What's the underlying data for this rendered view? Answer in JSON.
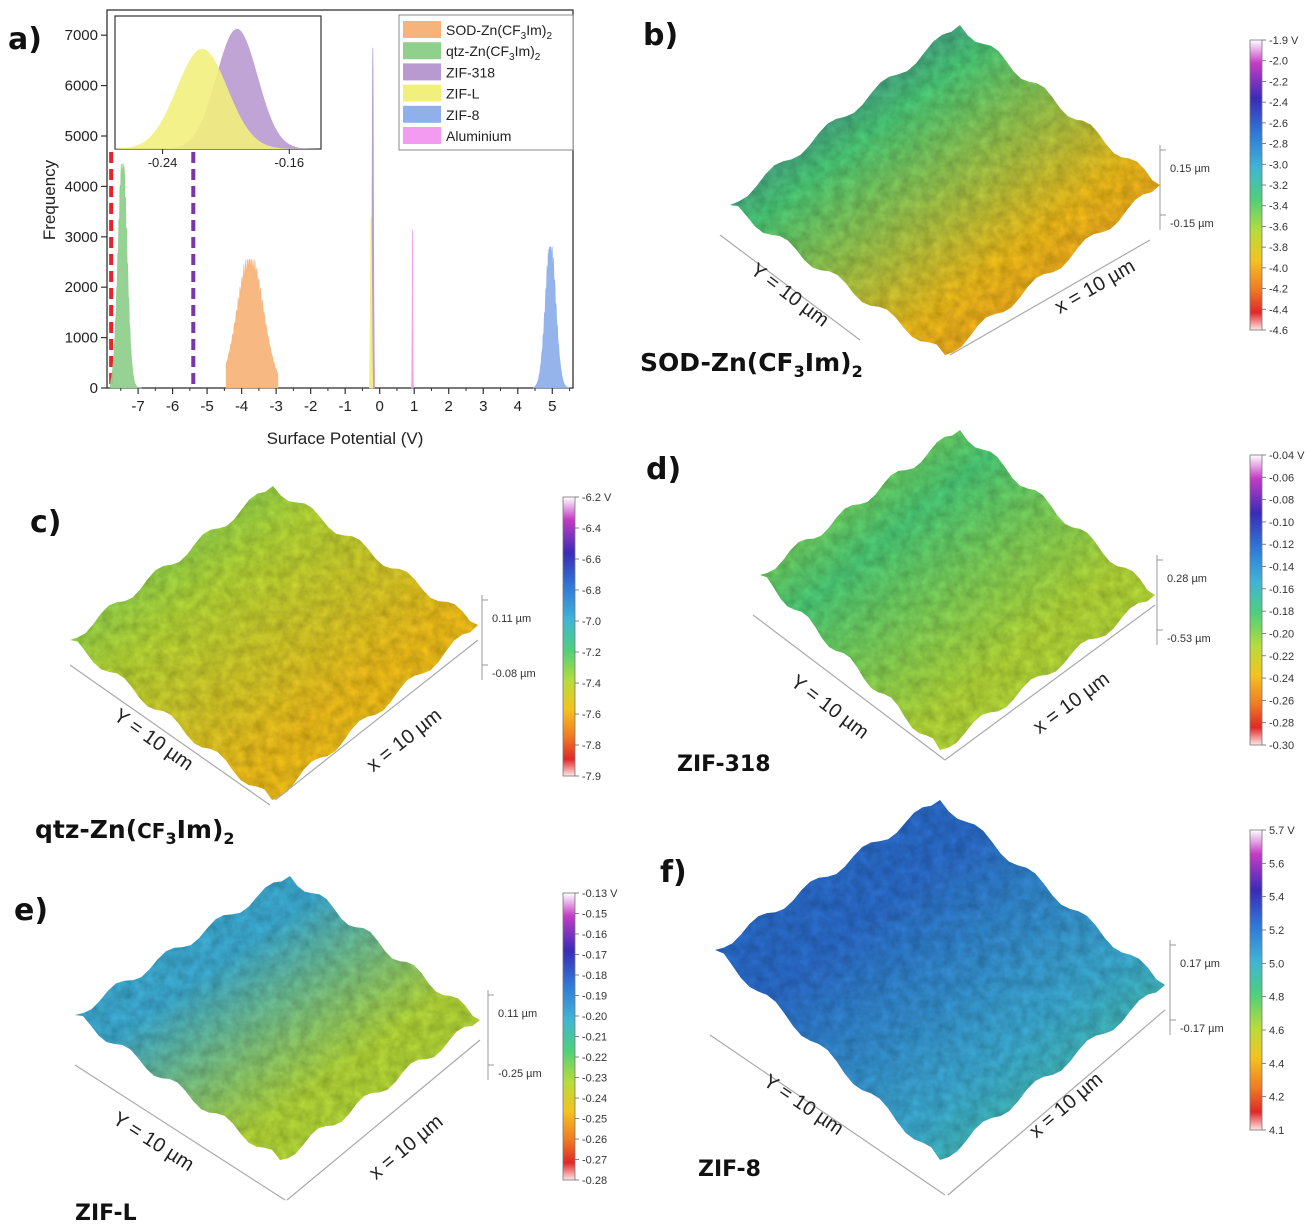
{
  "panels": {
    "a": "a)",
    "b": "b)",
    "c": "c)",
    "d": "d)",
    "e": "e)",
    "f": "f)"
  },
  "chart_data": [
    {
      "type": "area",
      "panel": "a",
      "xlabel": "Surface Potential (V)",
      "ylabel": "Frequency",
      "xlim": [
        -7.9,
        5.6
      ],
      "ylim": [
        0,
        7500
      ],
      "xticks": [
        -7,
        -6,
        -5,
        -4,
        -3,
        -2,
        -1,
        0,
        1,
        2,
        3,
        4,
        5
      ],
      "yticks": [
        0,
        1000,
        2000,
        3000,
        4000,
        5000,
        6000,
        7000
      ],
      "legend_position": "top-right",
      "series": [
        {
          "name": "SOD-Zn(CF3Im)2",
          "color": "#f7b47a",
          "peak_x": -3.75,
          "peak_y": 2550,
          "width": 0.38,
          "x_range": [
            -4.45,
            -2.95
          ]
        },
        {
          "name": "qtz-Zn(CF3Im)2",
          "color": "#8fd08d",
          "peak_x": -7.45,
          "peak_y": 4450,
          "width": 0.13,
          "x_range": [
            -7.8,
            -6.9
          ]
        },
        {
          "name": "ZIF-318",
          "color": "#b89ad0",
          "peak_x": -0.2,
          "peak_y": 6750,
          "width": 0.02,
          "x_range": [
            -0.25,
            -0.15
          ]
        },
        {
          "name": "ZIF-L",
          "color": "#f2f07c",
          "peak_x": -0.25,
          "peak_y": 3400,
          "width": 0.02,
          "x_range": [
            -0.3,
            -0.2
          ]
        },
        {
          "name": "ZIF-8",
          "color": "#8fb0ea",
          "peak_x": 4.95,
          "peak_y": 2800,
          "width": 0.15,
          "x_range": [
            4.45,
            5.5
          ]
        },
        {
          "name": "Aluminium",
          "color": "#f39bf0",
          "peak_x": 0.95,
          "peak_y": 3150,
          "width": 0.01,
          "x_range": [
            0.92,
            0.98
          ]
        }
      ],
      "reference_lines": [
        {
          "x": -7.78,
          "color": "#e8222a",
          "style": "dashed"
        },
        {
          "x": -5.4,
          "color": "#7a35a8",
          "style": "dashed"
        }
      ],
      "inset": {
        "xticks": [
          -0.24,
          -0.16
        ],
        "xlim": [
          -0.27,
          -0.14
        ],
        "series": [
          {
            "name": "ZIF-318",
            "color": "#b89ad0",
            "peak_x": -0.193,
            "peak_y": 7200,
            "width": 0.013
          },
          {
            "name": "ZIF-L",
            "color": "#f2f07c",
            "peak_x": -0.215,
            "peak_y": 6000,
            "width": 0.016
          }
        ]
      }
    },
    {
      "type": "heatmap",
      "panel": "b",
      "material": "SOD-Zn(CF3Im)2",
      "colorbar": [
        "-1.9 V",
        "-2.0",
        "-2.2",
        "-2.4",
        "-2.6",
        "-2.8",
        "-3.0",
        "-3.2",
        "-3.4",
        "-3.6",
        "-3.8",
        "-4.0",
        "-4.2",
        "-4.4",
        "-4.6"
      ],
      "height_labels": [
        "0.15 µm",
        "-0.15 µm"
      ],
      "axis_labels": [
        "Y = 10 µm",
        "x = 10 µm"
      ]
    },
    {
      "type": "heatmap",
      "panel": "c",
      "material": "qtz-Zn(CF3Im)2",
      "colorbar": [
        "-6.2 V",
        "-6.4",
        "-6.6",
        "-6.8",
        "-7.0",
        "-7.2",
        "-7.4",
        "-7.6",
        "-7.8",
        "-7.9"
      ],
      "height_labels": [
        "0.11 µm",
        "-0.08 µm"
      ],
      "axis_labels": [
        "Y = 10 µm",
        "x = 10 µm"
      ]
    },
    {
      "type": "heatmap",
      "panel": "d",
      "material": "ZIF-318",
      "colorbar": [
        "-0.04 V",
        "-0.06",
        "-0.08",
        "-0.10",
        "-0.12",
        "-0.14",
        "-0.16",
        "-0.18",
        "-0.20",
        "-0.22",
        "-0.24",
        "-0.26",
        "-0.28",
        "-0.30"
      ],
      "height_labels": [
        "0.28 µm",
        "-0.53 µm"
      ],
      "axis_labels": [
        "Y = 10 µm",
        "x = 10 µm"
      ]
    },
    {
      "type": "heatmap",
      "panel": "e",
      "material": "ZIF-L",
      "colorbar": [
        "-0.13 V",
        "-0.15",
        "-0.16",
        "-0.17",
        "-0.18",
        "-0.19",
        "-0.20",
        "-0.21",
        "-0.22",
        "-0.23",
        "-0.24",
        "-0.25",
        "-0.26",
        "-0.27",
        "-0.28"
      ],
      "height_labels": [
        "0.11 µm",
        "-0.25 µm"
      ],
      "axis_labels": [
        "Y = 10 µm",
        "x = 10 µm"
      ]
    },
    {
      "type": "heatmap",
      "panel": "f",
      "material": "ZIF-8",
      "colorbar": [
        "5.7 V",
        "5.6",
        "5.4",
        "5.2",
        "5.0",
        "4.8",
        "4.6",
        "4.4",
        "4.2",
        "4.1"
      ],
      "height_labels": [
        "0.17 µm",
        "-0.17 µm"
      ],
      "axis_labels": [
        "Y = 10 µm",
        "x = 10 µm"
      ]
    }
  ],
  "material_labels": {
    "b": {
      "base": "SOD-Zn(CF",
      "sub1": "3",
      "mid": "Im)",
      "sub2": "2"
    },
    "c": {
      "base": "qtz-Zn(",
      "mid0": "CF",
      "sub1": "3",
      "mid": "Im)",
      "sub2": "2"
    },
    "d": "ZIF-318",
    "e": "ZIF-L",
    "f": "ZIF-8"
  },
  "legend_display": [
    {
      "pre": "SOD-Zn(CF",
      "sub1": "3",
      "mid": "Im)",
      "sub2": "2"
    },
    {
      "pre": "qtz-Zn(CF",
      "sub1": "3",
      "mid": "Im)",
      "sub2": "2"
    },
    {
      "pre": "ZIF-318"
    },
    {
      "pre": "ZIF-L"
    },
    {
      "pre": "ZIF-8"
    },
    {
      "pre": "Aluminium"
    }
  ],
  "colors": {
    "surface_palette": [
      "#ffffff",
      "#c040c0",
      "#3a2bb8",
      "#2f6fd0",
      "#3fb0d8",
      "#4fd07a",
      "#b8dc3a",
      "#f4c21f",
      "#f07a22",
      "#e02828",
      "#ffdede"
    ]
  }
}
